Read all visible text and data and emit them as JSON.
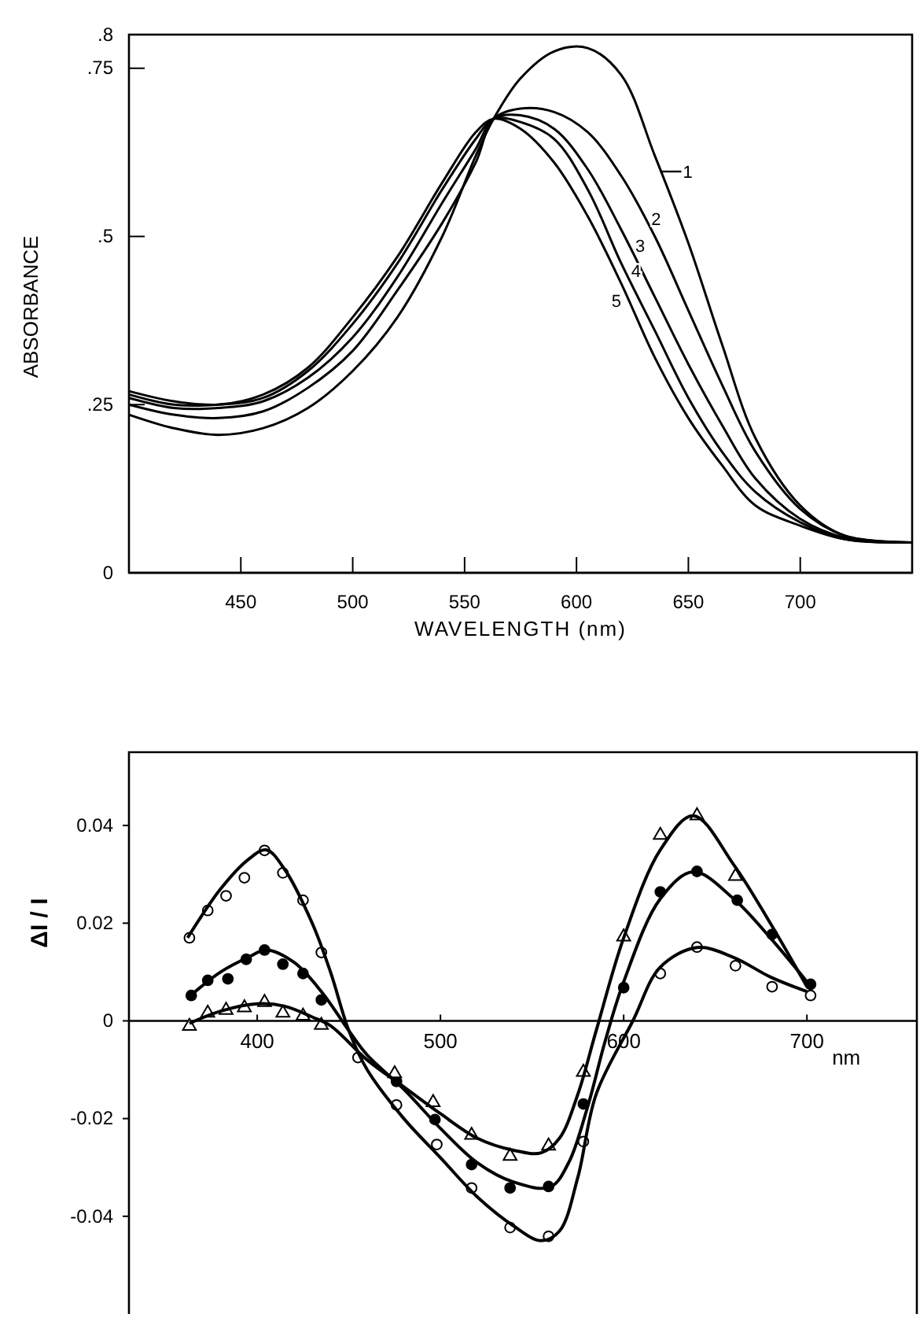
{
  "chart_data": [
    {
      "type": "line",
      "xlabel": "WAVELENGTH (nm)",
      "ylabel": "ABSORBANCE",
      "xlim": [
        400,
        750
      ],
      "ylim": [
        0,
        0.8
      ],
      "xticks": [
        450,
        500,
        550,
        600,
        650,
        700
      ],
      "yticks": [
        {
          "value": 0,
          "label": "0"
        },
        {
          "value": 0.25,
          "label": ".25"
        },
        {
          "value": 0.5,
          "label": ".5"
        },
        {
          "value": 0.75,
          "label": ".75"
        },
        {
          "value": 0.8,
          "label": ".8"
        }
      ],
      "x": [
        400,
        420,
        440,
        460,
        480,
        500,
        520,
        540,
        555,
        563,
        575,
        590,
        605,
        620,
        635,
        650,
        665,
        680,
        700,
        720,
        750
      ],
      "grid": false,
      "legend": "right",
      "marker": "none",
      "line_style": "solid",
      "series": [
        {
          "name": "1",
          "color": "#000000",
          "values": [
            0.235,
            0.215,
            0.205,
            0.215,
            0.245,
            0.3,
            0.38,
            0.5,
            0.62,
            0.675,
            0.735,
            0.775,
            0.78,
            0.74,
            0.62,
            0.49,
            0.34,
            0.2,
            0.1,
            0.055,
            0.045
          ]
        },
        {
          "name": "2",
          "color": "#000000",
          "values": [
            0.25,
            0.235,
            0.23,
            0.24,
            0.275,
            0.33,
            0.42,
            0.52,
            0.61,
            0.675,
            0.69,
            0.685,
            0.655,
            0.59,
            0.5,
            0.39,
            0.28,
            0.18,
            0.095,
            0.055,
            0.045
          ]
        },
        {
          "name": "3",
          "color": "#000000",
          "values": [
            0.26,
            0.245,
            0.245,
            0.255,
            0.29,
            0.35,
            0.44,
            0.55,
            0.63,
            0.675,
            0.68,
            0.66,
            0.6,
            0.51,
            0.41,
            0.31,
            0.22,
            0.14,
            0.08,
            0.052,
            0.045
          ]
        },
        {
          "name": "4",
          "color": "#000000",
          "values": [
            0.265,
            0.25,
            0.25,
            0.26,
            0.3,
            0.37,
            0.46,
            0.57,
            0.645,
            0.675,
            0.67,
            0.645,
            0.57,
            0.46,
            0.36,
            0.26,
            0.18,
            0.12,
            0.075,
            0.05,
            0.045
          ]
        },
        {
          "name": "5",
          "color": "#000000",
          "values": [
            0.27,
            0.255,
            0.25,
            0.265,
            0.305,
            0.38,
            0.47,
            0.58,
            0.655,
            0.675,
            0.66,
            0.61,
            0.53,
            0.43,
            0.32,
            0.23,
            0.16,
            0.1,
            0.07,
            0.05,
            0.045
          ]
        }
      ]
    },
    {
      "type": "scatter",
      "xlabel": "nm",
      "ylabel": "ΔI / I",
      "xlim": [
        330,
        760
      ],
      "ylim": [
        -0.06,
        0.055
      ],
      "xticks": [
        400,
        500,
        600,
        700
      ],
      "yticks": [
        {
          "value": 0.04,
          "label": "0.04"
        },
        {
          "value": 0.02,
          "label": "0.02"
        },
        {
          "value": 0,
          "label": "0"
        },
        {
          "value": -0.02,
          "label": "-0.02"
        },
        {
          "value": -0.04,
          "label": "-0.04"
        }
      ],
      "grid": false,
      "line_style": "solid",
      "series": [
        {
          "marker": "circle",
          "color": "#ffffff",
          "x": [
            363,
            373,
            383,
            393,
            404,
            414,
            425,
            435,
            455,
            476,
            498,
            517,
            538,
            559,
            578,
            620,
            640,
            661,
            681,
            702
          ],
          "values": [
            0.017,
            0.0226,
            0.0256,
            0.0293,
            0.0349,
            0.0303,
            0.0247,
            0.014,
            -0.0075,
            -0.0172,
            -0.0253,
            -0.0342,
            -0.0423,
            -0.0441,
            -0.0247,
            0.0097,
            0.0151,
            0.0113,
            0.007,
            0.0052
          ]
        },
        {
          "marker": "circle",
          "color": "#000000",
          "x": [
            364,
            373,
            384,
            394,
            404,
            414,
            425,
            435,
            476,
            497,
            517,
            538,
            559,
            578,
            600,
            620,
            640,
            662,
            681,
            702
          ],
          "values": [
            0.0052,
            0.0083,
            0.0086,
            0.0126,
            0.0145,
            0.0116,
            0.0097,
            0.0043,
            -0.0124,
            -0.0202,
            -0.0294,
            -0.0342,
            -0.0339,
            -0.017,
            0.0068,
            0.0264,
            0.0306,
            0.0247,
            0.0177,
            0.0075
          ]
        },
        {
          "marker": "triangle",
          "color": "#ffffff",
          "x": [
            363,
            373,
            383,
            393,
            404,
            414,
            425,
            435,
            475,
            496,
            517,
            538,
            559,
            578,
            600,
            620,
            640,
            661
          ],
          "values": [
            -0.0011,
            0.0016,
            0.0022,
            0.0027,
            0.0038,
            0.0016,
            0.001,
            -0.0009,
            -0.0108,
            -0.0167,
            -0.0234,
            -0.0277,
            -0.0256,
            -0.0105,
            0.0172,
            0.038,
            0.042,
            0.0296
          ]
        },
        {
          "type": "line",
          "color": "#000000",
          "x": [
            362,
            380,
            395,
            405,
            415,
            430,
            440,
            450,
            460,
            480,
            500,
            520,
            540,
            555,
            565,
            575,
            585,
            605,
            620,
            640,
            660,
            680,
            700
          ],
          "values": [
            0.017,
            0.027,
            0.033,
            0.035,
            0.031,
            0.02,
            0.01,
            -0.002,
            -0.01,
            -0.02,
            -0.028,
            -0.036,
            -0.042,
            -0.045,
            -0.043,
            -0.032,
            -0.015,
            0.0,
            0.011,
            0.015,
            0.013,
            0.009,
            0.006
          ]
        },
        {
          "type": "line",
          "color": "#000000",
          "x": [
            363,
            380,
            395,
            405,
            420,
            435,
            450,
            460,
            480,
            500,
            520,
            540,
            560,
            570,
            580,
            590,
            600,
            620,
            638,
            660,
            680,
            700
          ],
          "values": [
            0.005,
            0.01,
            0.013,
            0.0145,
            0.012,
            0.006,
            -0.002,
            -0.007,
            -0.014,
            -0.022,
            -0.029,
            -0.033,
            -0.034,
            -0.029,
            -0.018,
            -0.004,
            0.008,
            0.025,
            0.0305,
            0.025,
            0.017,
            0.008
          ]
        },
        {
          "type": "line",
          "color": "#000000",
          "x": [
            363,
            380,
            400,
            415,
            430,
            440,
            460,
            480,
            500,
            520,
            540,
            555,
            565,
            575,
            585,
            600,
            620,
            638,
            660,
            680,
            700
          ],
          "values": [
            -0.0005,
            0.002,
            0.0035,
            0.003,
            0.0008,
            -0.001,
            -0.008,
            -0.0135,
            -0.019,
            -0.024,
            -0.0265,
            -0.027,
            -0.024,
            -0.015,
            -0.002,
            0.017,
            0.035,
            0.042,
            0.032,
            0.02,
            0.007
          ]
        }
      ]
    }
  ]
}
